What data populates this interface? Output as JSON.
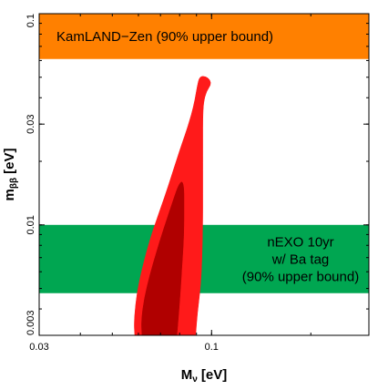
{
  "chart_data": {
    "type": "area",
    "title": "",
    "xlabel": "M",
    "xlabel_sub": "ν",
    "xlabel_unit": "[eV]",
    "ylabel": "m",
    "ylabel_sub": "ββ",
    "ylabel_unit": "[eV]",
    "x_scale": "log",
    "y_scale": "log",
    "xlim": [
      0.03,
      0.3
    ],
    "ylim": [
      0.003,
      0.1
    ],
    "x_ticks": [
      {
        "value": 0.03,
        "label": "0.03"
      },
      {
        "value": 0.1,
        "label": "0.1"
      }
    ],
    "y_ticks": [
      {
        "value": 0.003,
        "label": "0.003"
      },
      {
        "value": 0.01,
        "label": "0.01"
      },
      {
        "value": 0.03,
        "label": "0.03"
      },
      {
        "value": 0.1,
        "label": "0.1"
      }
    ],
    "grid": false,
    "bands": [
      {
        "label": "KamLAND−Zen (90% upper bound)",
        "y_range": [
          0.061,
          0.1
        ],
        "color": "#ff8000"
      },
      {
        "label_lines": [
          "nEXO 10yr",
          "w/ Ba tag",
          "(90% upper bound)"
        ],
        "y_range": [
          0.00475,
          0.01
        ],
        "color": "#00a651"
      }
    ],
    "regions": [
      {
        "color": "#ff1a1a",
        "points": [
          [
            0.0585,
            0.003
          ],
          [
            0.0582,
            0.0034
          ],
          [
            0.0588,
            0.0042
          ],
          [
            0.06,
            0.0052
          ],
          [
            0.0625,
            0.0068
          ],
          [
            0.065,
            0.0085
          ],
          [
            0.068,
            0.0105
          ],
          [
            0.072,
            0.0135
          ],
          [
            0.076,
            0.0175
          ],
          [
            0.08,
            0.0225
          ],
          [
            0.084,
            0.028
          ],
          [
            0.087,
            0.0335
          ],
          [
            0.089,
            0.039
          ],
          [
            0.0905,
            0.0455
          ],
          [
            0.092,
            0.0505
          ],
          [
            0.096,
            0.0505
          ],
          [
            0.099,
            0.0485
          ],
          [
            0.0995,
            0.046
          ],
          [
            0.0965,
            0.043
          ],
          [
            0.0945,
            0.038
          ],
          [
            0.094,
            0.032
          ],
          [
            0.094,
            0.026
          ],
          [
            0.094,
            0.02
          ],
          [
            0.094,
            0.014
          ],
          [
            0.094,
            0.01
          ],
          [
            0.0935,
            0.0068
          ],
          [
            0.0925,
            0.005
          ],
          [
            0.0905,
            0.0038
          ],
          [
            0.0895,
            0.003
          ]
        ]
      },
      {
        "color": "#b00000",
        "points": [
          [
            0.0615,
            0.003
          ],
          [
            0.0612,
            0.0035
          ],
          [
            0.0625,
            0.0045
          ],
          [
            0.065,
            0.0058
          ],
          [
            0.068,
            0.0074
          ],
          [
            0.071,
            0.0092
          ],
          [
            0.074,
            0.0112
          ],
          [
            0.077,
            0.0135
          ],
          [
            0.0795,
            0.0155
          ],
          [
            0.0815,
            0.0162
          ],
          [
            0.0825,
            0.0148
          ],
          [
            0.0825,
            0.0125
          ],
          [
            0.0825,
            0.01
          ],
          [
            0.082,
            0.0078
          ],
          [
            0.0812,
            0.0062
          ],
          [
            0.0805,
            0.005
          ],
          [
            0.0795,
            0.0038
          ],
          [
            0.0785,
            0.003
          ]
        ]
      }
    ]
  }
}
